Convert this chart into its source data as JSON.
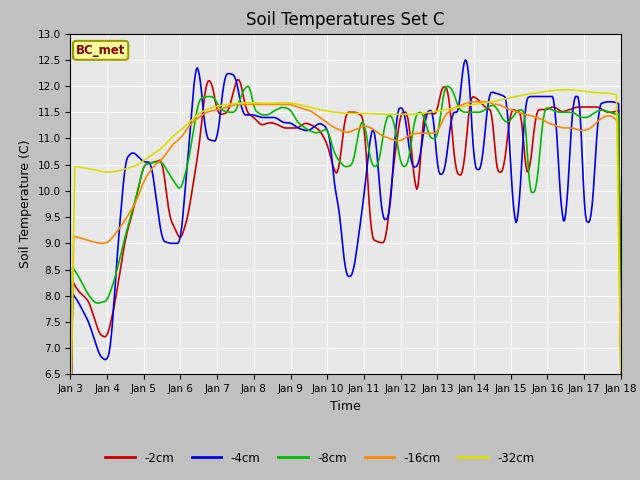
{
  "title": "Soil Temperatures Set C",
  "xlabel": "Time",
  "ylabel": "Soil Temperature (C)",
  "ylim": [
    6.5,
    13.0
  ],
  "yticks": [
    6.5,
    7.0,
    7.5,
    8.0,
    8.5,
    9.0,
    9.5,
    10.0,
    10.5,
    11.0,
    11.5,
    12.0,
    12.5,
    13.0
  ],
  "fig_bg_color": "#c8c8c8",
  "plot_bg_color": "#e8e8e8",
  "grid_color": "#ffffff",
  "legend_label": "BC_met",
  "legend_bg": "#ffff99",
  "legend_border": "#999900",
  "series_colors": {
    "-2cm": "#cc0000",
    "-4cm": "#0000ee",
    "-8cm": "#00bb00",
    "-16cm": "#ff8800",
    "-32cm": "#dddd00"
  },
  "series_linewidth": 1.2,
  "x_tick_labels": [
    "Jan 3",
    "Jan 4",
    "Jan 5",
    "Jan 6",
    "Jan 7",
    "Jan 8",
    "Jan 9",
    "Jan 10",
    "Jan 11",
    "Jan 12",
    "Jan 13",
    "Jan 14",
    "Jan 15",
    "Jan 16",
    "Jan 17",
    "Jan 18"
  ],
  "title_fontsize": 12,
  "tick_fontsize": 7.5,
  "label_fontsize": 9
}
